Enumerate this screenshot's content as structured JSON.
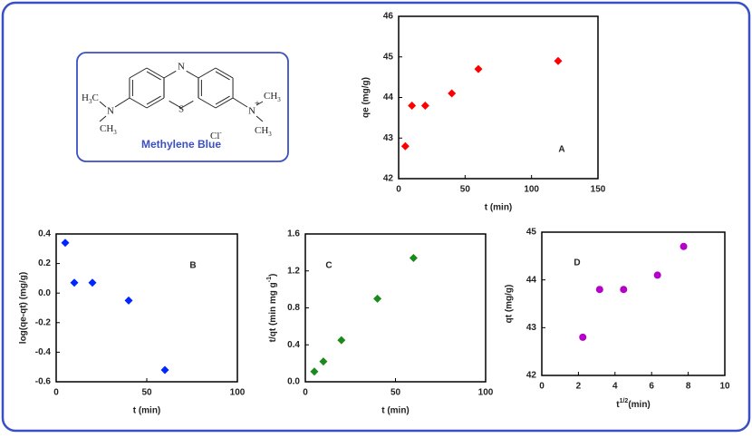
{
  "diagram": {
    "caption": "Methylene Blue",
    "atoms": {
      "ring_n": "N",
      "ring_s": "S",
      "left_n": "N",
      "right_n": "N",
      "charge": "+",
      "left_methyl_top": [
        "H",
        "3",
        "C"
      ],
      "left_methyl_bottom": [
        "CH",
        "3"
      ],
      "right_methyl_top": [
        "CH",
        "3"
      ],
      "right_methyl_bottom": [
        "CH",
        "3"
      ],
      "counter_ion": [
        "Cl",
        "-"
      ]
    }
  },
  "chart_data": [
    {
      "type": "scatter",
      "marker": "diamond",
      "color": "#ff0000",
      "annotation": "A",
      "xlabel": "t (min)",
      "ylabel": "qe (mg/g)",
      "x": [
        5,
        10,
        20,
        40,
        60,
        120
      ],
      "values": [
        42.8,
        43.8,
        43.8,
        44.1,
        44.7,
        44.9
      ],
      "xlim": [
        0,
        150
      ],
      "xticks": [
        0,
        50,
        100,
        150
      ],
      "ylim": [
        42,
        46
      ],
      "yticks": [
        42,
        43,
        44,
        45,
        46
      ]
    },
    {
      "type": "scatter",
      "marker": "diamond",
      "color": "#0026ff",
      "annotation": "B",
      "xlabel": "t (min)",
      "ylabel": "log(qe-qt) (mg/g)",
      "x": [
        5,
        10,
        20,
        40,
        60
      ],
      "values": [
        0.34,
        0.07,
        0.07,
        -0.05,
        -0.52
      ],
      "xlim": [
        0,
        100
      ],
      "xticks": [
        0,
        50,
        100
      ],
      "ylim": [
        -0.6,
        0.4
      ],
      "yticks": [
        -0.6,
        -0.4,
        -0.2,
        {
          "value": 0,
          "label": "0.0"
        },
        0.2,
        0.4
      ]
    },
    {
      "type": "scatter",
      "marker": "diamond",
      "color": "#1a8a1a",
      "annotation": "C",
      "xlabel": "t (min)",
      "ylabel": [
        "t/qt (min mg  g",
        "-1",
        ")"
      ],
      "x": [
        5,
        10,
        20,
        40,
        60
      ],
      "values": [
        0.11,
        0.22,
        0.45,
        0.9,
        1.34
      ],
      "xlim": [
        0,
        100
      ],
      "xticks": [
        0,
        50,
        100
      ],
      "ylim": [
        0,
        1.6
      ],
      "yticks": [
        {
          "value": 0,
          "label": "0.0"
        },
        0.4,
        0.8,
        1.2,
        1.6
      ]
    },
    {
      "type": "scatter",
      "marker": "circle",
      "color": "#b400c8",
      "annotation": "D",
      "xlabel": [
        "t",
        "1/2",
        "(min)"
      ],
      "ylabel": "qt (mg/g)",
      "x": [
        2.24,
        3.16,
        4.47,
        6.32,
        7.75
      ],
      "values": [
        42.8,
        43.8,
        43.8,
        44.1,
        44.7
      ],
      "xlim": [
        0,
        10
      ],
      "xticks": [
        0,
        2,
        4,
        6,
        8,
        10
      ],
      "ylim": [
        42,
        45
      ],
      "yticks": [
        42,
        43,
        44,
        45
      ]
    }
  ]
}
